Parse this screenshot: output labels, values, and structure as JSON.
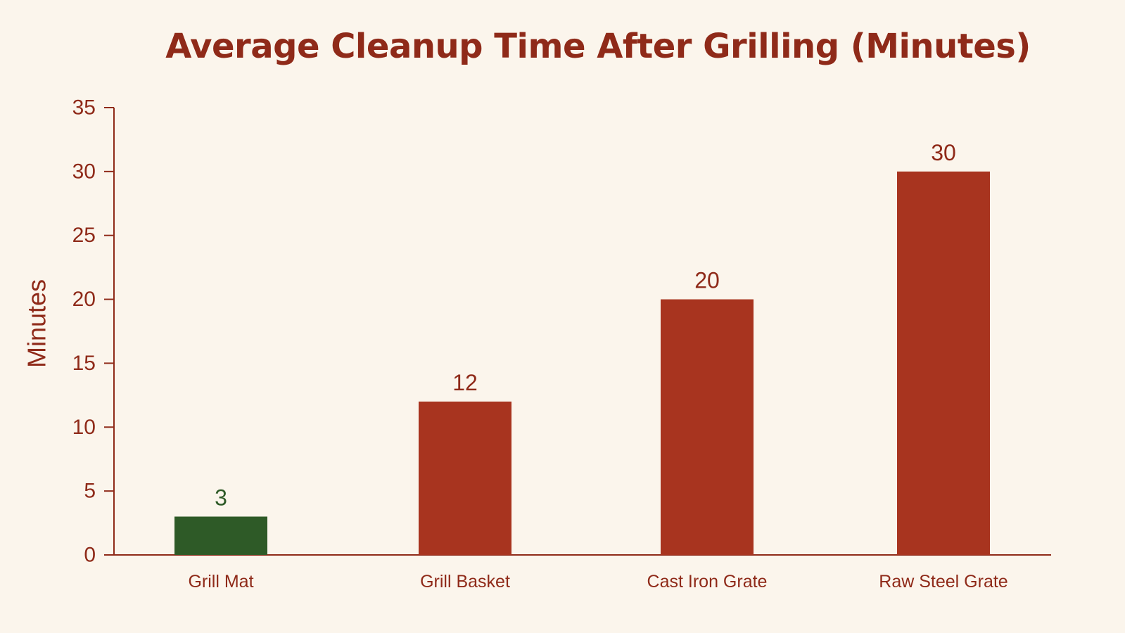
{
  "chart_data": {
    "type": "bar",
    "title": "Average Cleanup Time After Grilling (Minutes)",
    "xlabel": "",
    "ylabel": "Minutes",
    "categories": [
      "Grill Mat",
      "Grill Basket",
      "Cast Iron Grate",
      "Raw Steel Grate"
    ],
    "values": [
      3,
      12,
      20,
      30
    ],
    "value_labels": [
      "3",
      "12",
      "20",
      "30"
    ],
    "bar_colors": [
      "#2E5A27",
      "#A8341F",
      "#A8341F",
      "#A8341F"
    ],
    "ylim": [
      0,
      35
    ],
    "yticks": [
      0,
      5,
      10,
      15,
      20,
      25,
      30,
      35
    ],
    "ytick_labels": [
      "0",
      "5",
      "10",
      "15",
      "20",
      "25",
      "30",
      "35"
    ],
    "grid": false,
    "legend": "none"
  },
  "colors": {
    "background": "#FBF5EC",
    "text": "#8F2A19",
    "axis": "#8F2A19",
    "highlight_bar": "#2E5A27",
    "default_bar": "#A8341F"
  }
}
